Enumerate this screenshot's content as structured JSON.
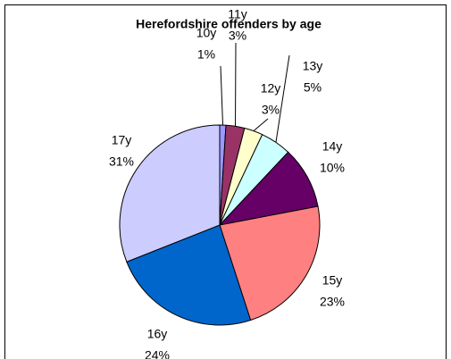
{
  "chart_data": {
    "type": "pie",
    "title": "Herefordshire offenders by age",
    "categories": [
      "10y",
      "11y",
      "12y",
      "13y",
      "14y",
      "15y",
      "16y",
      "17y"
    ],
    "values": [
      1,
      3,
      3,
      5,
      10,
      23,
      24,
      31
    ],
    "value_labels": [
      "1%",
      "3%",
      "3%",
      "5%",
      "10%",
      "23%",
      "24%",
      "31%"
    ],
    "colors": [
      "#9999FF",
      "#993366",
      "#FFFFCC",
      "#CCFFFF",
      "#660066",
      "#FF8080",
      "#0066CC",
      "#CCCCFF"
    ]
  }
}
